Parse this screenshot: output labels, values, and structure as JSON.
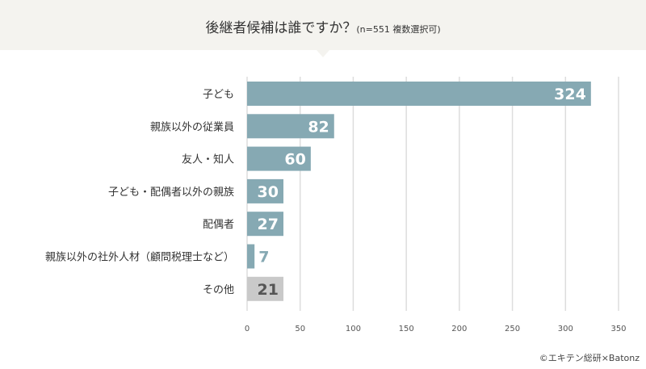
{
  "title": {
    "main": "後継者候補は誰ですか？",
    "sub": "(n=551 複数選択可)"
  },
  "credit": "©エキテン総研×Batonz",
  "colors": {
    "bar": "#86a9b3",
    "other": "#c9c9c9",
    "other_label": "#555555",
    "grid": "#dddddd"
  },
  "chart_data": {
    "type": "bar",
    "orientation": "horizontal",
    "title": "後継者候補は誰ですか？(n=551 複数選択可)",
    "categories": [
      "子ども",
      "親族以外の従業員",
      "友人・知人",
      "子ども・配偶者以外の親族",
      "配偶者",
      "親族以外の社外人材（顧問税理士など）",
      "その他"
    ],
    "values": [
      324,
      82,
      60,
      30,
      27,
      7,
      21
    ],
    "xlim": [
      0,
      350
    ],
    "xticks": [
      0,
      50,
      100,
      150,
      200,
      250,
      300,
      350
    ],
    "grid": true,
    "legend": "none"
  }
}
